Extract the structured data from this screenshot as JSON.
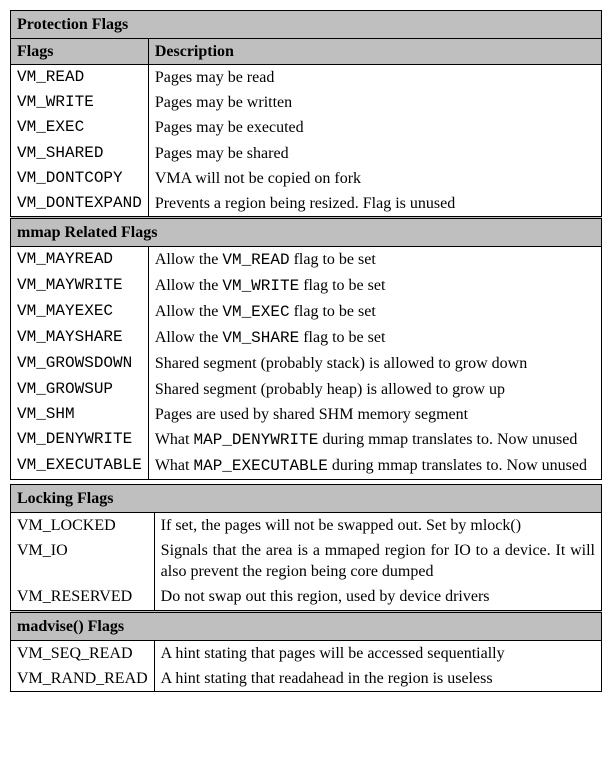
{
  "sections": [
    {
      "title": "Protection Flags",
      "show_headers": true,
      "headers": {
        "flag": "Flags",
        "desc": "Description"
      },
      "flag_font": "mono",
      "rows": [
        {
          "flag": "VM_READ",
          "desc": "Pages may be read"
        },
        {
          "flag": "VM_WRITE",
          "desc": "Pages may be written"
        },
        {
          "flag": "VM_EXEC",
          "desc": "Pages may be executed"
        },
        {
          "flag": "VM_SHARED",
          "desc": "Pages may be shared"
        },
        {
          "flag": "VM_DONTCOPY",
          "desc": "VMA will not be copied on fork"
        },
        {
          "flag": "VM_DONTEXPAND",
          "desc": "Prevents a region being resized. Flag is unused"
        }
      ]
    },
    {
      "title": "mmap Related Flags",
      "show_headers": false,
      "flag_font": "mono",
      "rows": [
        {
          "flag": "VM_MAYREAD",
          "desc_pre": "Allow the ",
          "desc_mono": "VM_READ",
          "desc_post": " flag to be set"
        },
        {
          "flag": "VM_MAYWRITE",
          "desc_pre": "Allow the ",
          "desc_mono": "VM_WRITE",
          "desc_post": " flag to be set"
        },
        {
          "flag": "VM_MAYEXEC",
          "desc_pre": "Allow the ",
          "desc_mono": "VM_EXEC",
          "desc_post": " flag to be set"
        },
        {
          "flag": "VM_MAYSHARE",
          "desc_pre": "Allow the ",
          "desc_mono": "VM_SHARE",
          "desc_post": " flag to be set"
        },
        {
          "flag": "VM_GROWSDOWN",
          "desc": "Shared segment (probably stack) is allowed to grow down",
          "justify": true
        },
        {
          "flag": "VM_GROWSUP",
          "desc": "Shared segment (probably heap) is allowed to grow up"
        },
        {
          "flag": "VM_SHM",
          "desc": "Pages are used by shared SHM memory segment"
        },
        {
          "flag": "VM_DENYWRITE",
          "desc_pre": "What ",
          "desc_mono": "MAP_DENYWRITE",
          "desc_post": " during mmap translates to. Now unused",
          "justify": true
        },
        {
          "flag": "VM_EXECUTABLE",
          "desc_pre": "What ",
          "desc_mono": "MAP_EXECUTABLE",
          "desc_post": " during mmap translates to. Now unused",
          "justify": true
        }
      ]
    },
    {
      "title": "Locking Flags",
      "show_headers": false,
      "flag_font": "serif",
      "detached": true,
      "rows": [
        {
          "flag": "VM_LOCKED",
          "desc": "If set, the pages will not be swapped out. Set by mlock()",
          "justify": true
        },
        {
          "flag": "VM_IO",
          "desc": "Signals that the area is a mmaped region for IO to a device. It will also prevent the region being core dumped",
          "justify": true
        },
        {
          "flag": "VM_RESERVED",
          "desc": "Do not swap out this region, used by device drivers"
        }
      ]
    },
    {
      "title": "madvise() Flags",
      "show_headers": false,
      "flag_font": "serif",
      "rows": [
        {
          "flag": "VM_SEQ_READ",
          "desc": "A hint stating that pages will be accessed sequentially",
          "justify": true
        },
        {
          "flag": "VM_RAND_READ",
          "desc": "A hint stating that readahead in the region is useless",
          "justify": true
        }
      ]
    }
  ],
  "colors": {
    "header_bg": "#bfbfbf",
    "border": "#000000",
    "text": "#000000",
    "page_bg": "#ffffff"
  },
  "fontsizes": {
    "body": 16
  }
}
